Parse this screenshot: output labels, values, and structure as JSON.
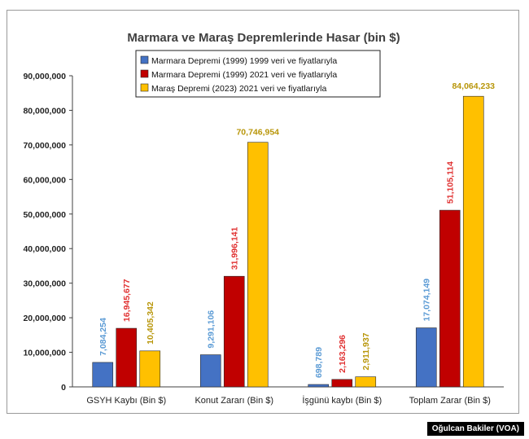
{
  "chart_data": {
    "type": "bar",
    "title": "Marmara ve Maraş Depremlerinde Hasar (bin $)",
    "categories": [
      "GSYH Kaybı (Bin $)",
      "Konut Zararı (Bin $)",
      "İşgünü kaybı (Bin $)",
      "Toplam Zarar (Bin $)"
    ],
    "series": [
      {
        "name": "Marmara Depremi (1999) 1999 veri ve fiyatlarıyla",
        "color": "#4472c4",
        "label_color": "#5b9bd5",
        "values": [
          7084254,
          9291106,
          698789,
          17074149
        ],
        "labels": [
          "7,084,254",
          "9,291,106",
          "698,789",
          "17,074,149"
        ]
      },
      {
        "name": "Marmara Depremi (1999) 2021 veri ve fiyatlarıyla",
        "color": "#c00000",
        "label_color": "#e03030",
        "values": [
          16945677,
          31996141,
          2163296,
          51105114
        ],
        "labels": [
          "16,945,677",
          "31,996,141",
          "2,163,296",
          "51,105,114"
        ]
      },
      {
        "name": "Maraş Depremi (2023) 2021 veri ve fiyatlarıyla",
        "color": "#ffc000",
        "label_color": "#b8960a",
        "values": [
          10405342,
          70746954,
          2911937,
          84064233
        ],
        "labels": [
          "10,405,342",
          "70,746,954",
          "2,911,937",
          "84,064,233"
        ]
      }
    ],
    "ylim": [
      0,
      90000000
    ],
    "yticks": [
      "0",
      "10,000,000",
      "20,000,000",
      "30,000,000",
      "40,000,000",
      "50,000,000",
      "60,000,000",
      "70,000,000",
      "80,000,000",
      "90,000,000"
    ],
    "ytick_values": [
      0,
      10000000,
      20000000,
      30000000,
      40000000,
      50000000,
      60000000,
      70000000,
      80000000,
      90000000
    ],
    "grid": false,
    "legend": "top-center"
  },
  "credit": "Oğulcan Bakiler (VOA)"
}
